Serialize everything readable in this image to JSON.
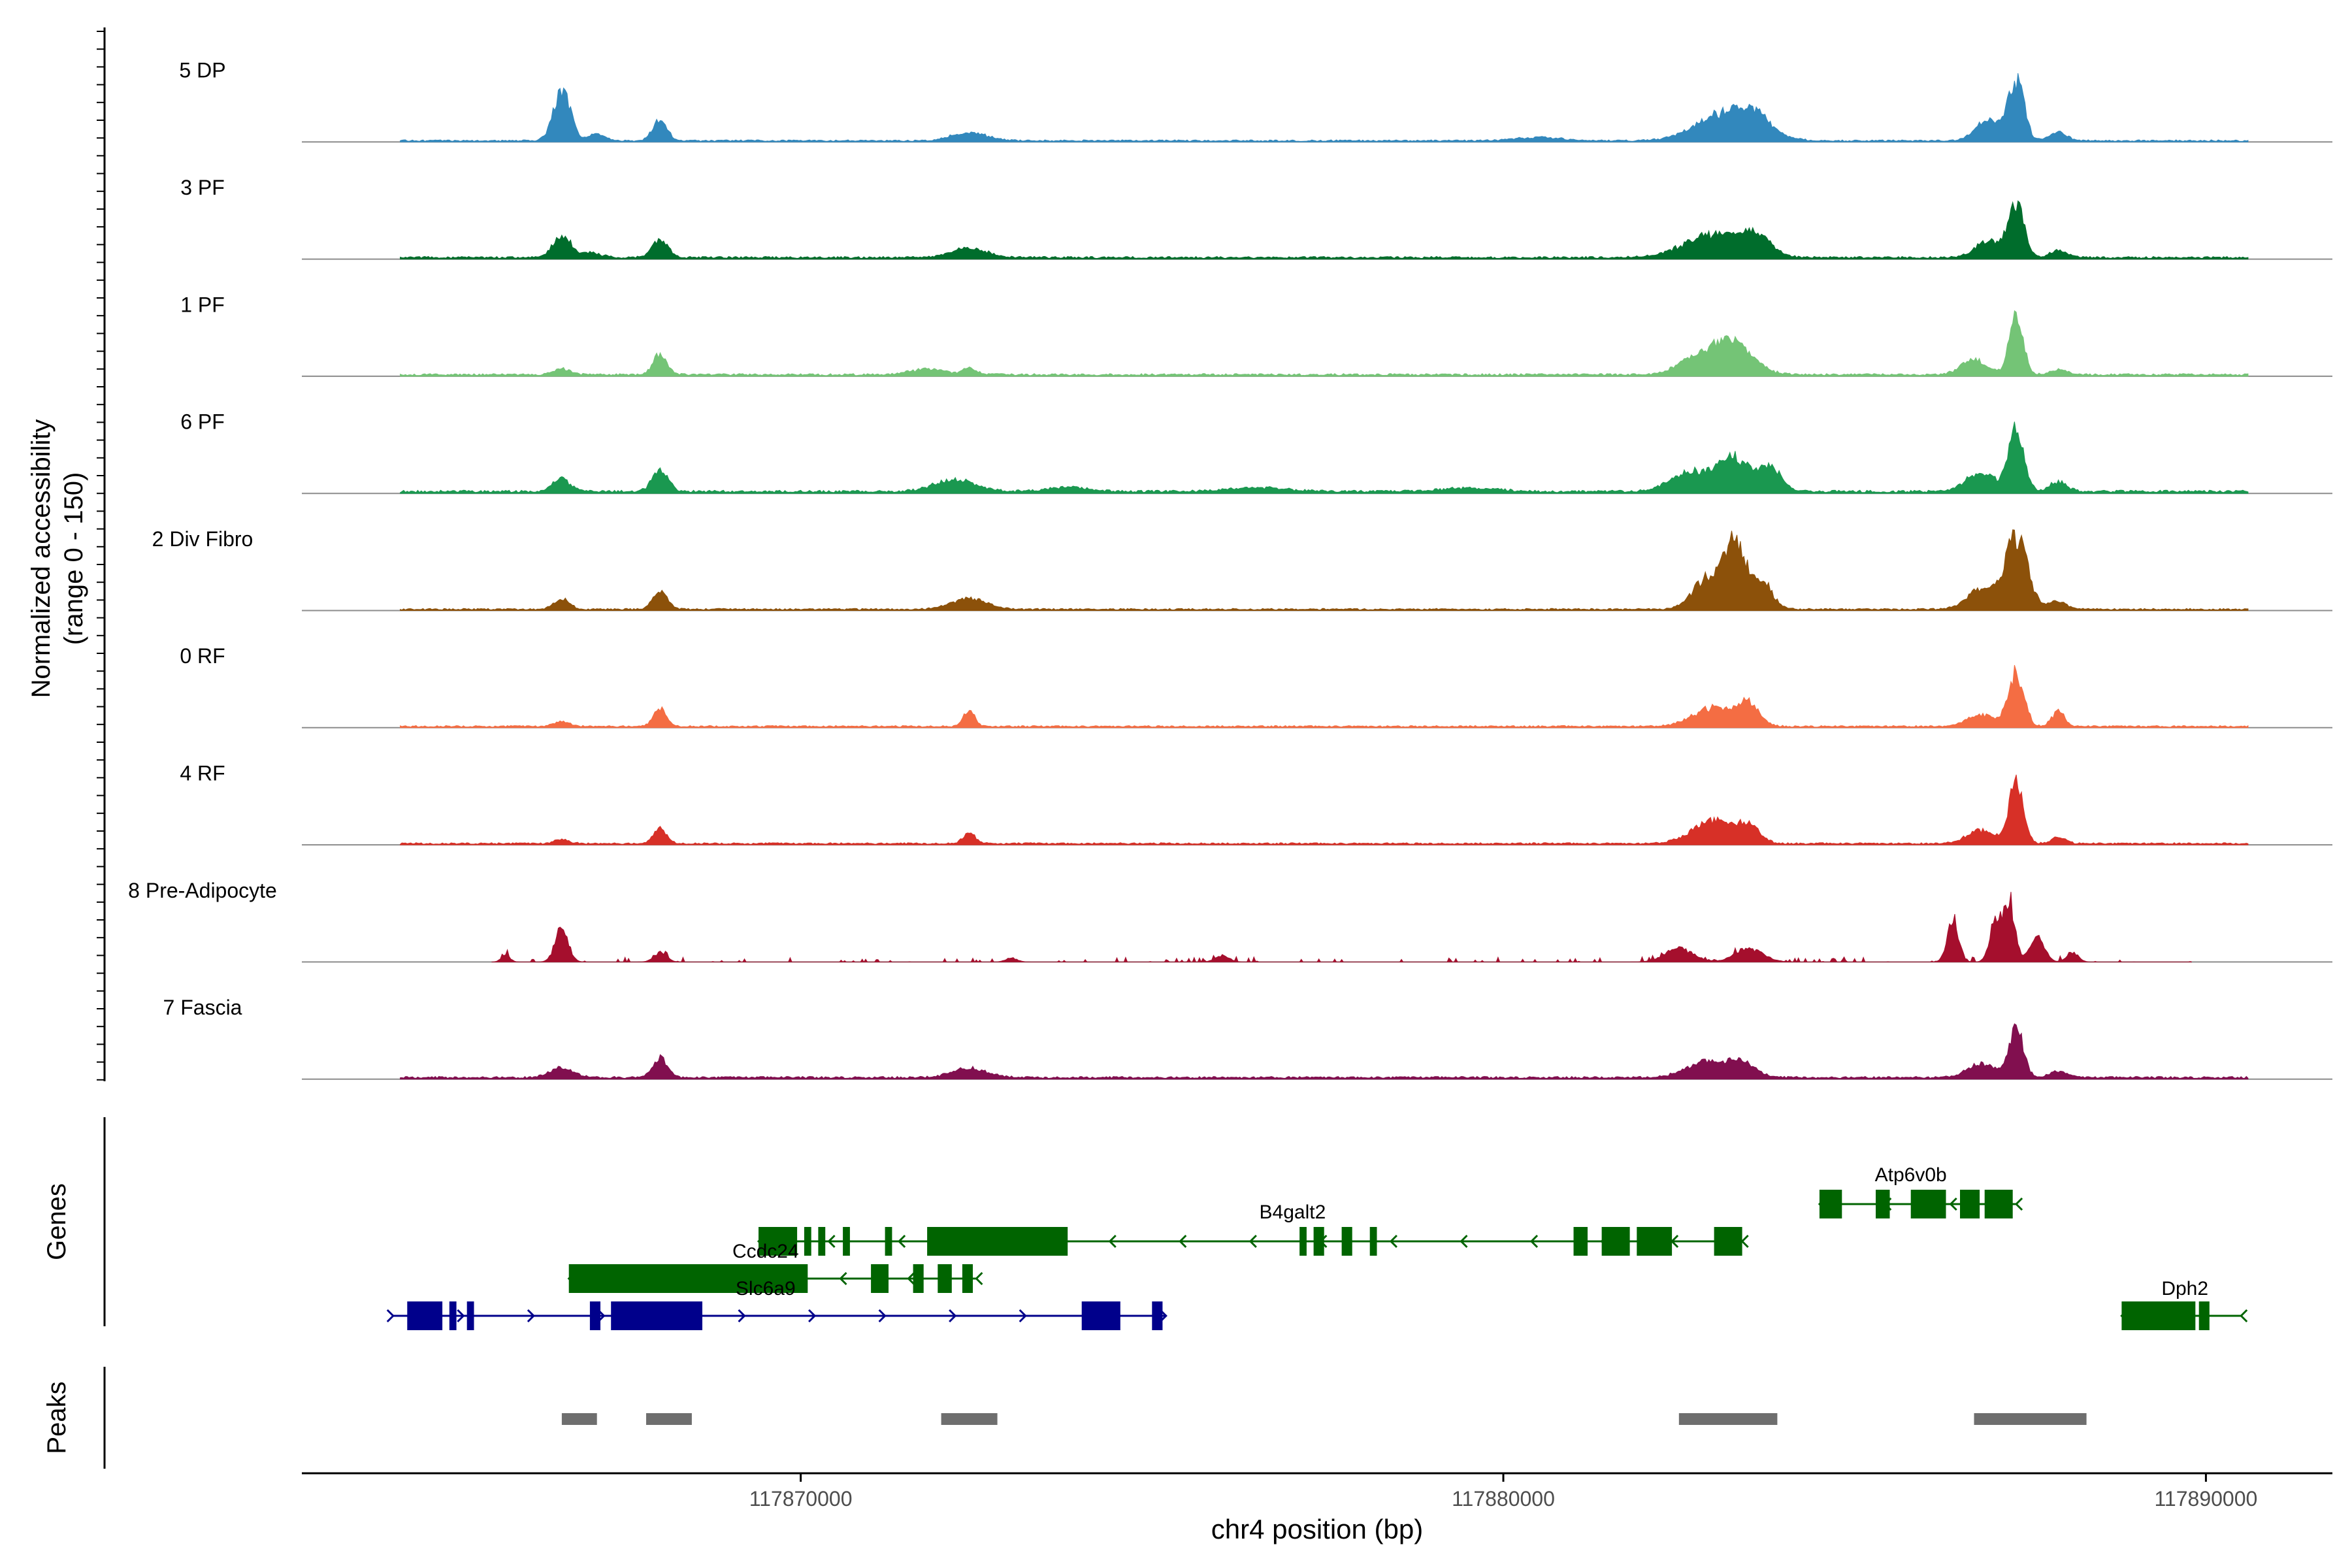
{
  "chart_data": {
    "type": "area",
    "subtype": "genome-coverage-track",
    "xlabel": "chr4 position (bp)",
    "ylabel": "Normalized accessibility",
    "ylabel_range": "(range 0 - 150)",
    "x_domain": [
      117862900,
      117891800
    ],
    "y_range": [
      0,
      150
    ],
    "x_ticks": [
      117870000,
      117880000,
      117890000
    ],
    "x_tick_labels": [
      "117870000",
      "117880000",
      "117890000"
    ],
    "genes_track_label": "Genes",
    "peaks_track_label": "Peaks",
    "tracks": [
      {
        "name": "5 DP",
        "color": "#3288bd",
        "peaks": [
          [
            117866600,
            150,
            120
          ],
          [
            117867100,
            20,
            120
          ],
          [
            117868000,
            65,
            100
          ],
          [
            117872400,
            24,
            250
          ],
          [
            117880500,
            10,
            300
          ],
          [
            117883200,
            85,
            420
          ],
          [
            117883600,
            40,
            200
          ],
          [
            117887300,
            180,
            110
          ],
          [
            117886900,
            60,
            180
          ],
          [
            117887900,
            25,
            120
          ]
        ],
        "baseline": 4,
        "noise_start": 117864300,
        "noise_end": 117890600
      },
      {
        "name": "3 PF",
        "color": "#006d2c",
        "peaks": [
          [
            117866600,
            70,
            120
          ],
          [
            117867000,
            15,
            150
          ],
          [
            117868000,
            50,
            110
          ],
          [
            117872400,
            28,
            250
          ],
          [
            117883000,
            70,
            420
          ],
          [
            117883600,
            55,
            200
          ],
          [
            117887300,
            160,
            110
          ],
          [
            117886900,
            50,
            180
          ],
          [
            117887900,
            20,
            120
          ]
        ],
        "baseline": 5,
        "noise_start": 117864300,
        "noise_end": 117890600
      },
      {
        "name": "1 PF",
        "color": "#74c476",
        "peaks": [
          [
            117866600,
            18,
            120
          ],
          [
            117868000,
            60,
            100
          ],
          [
            117871800,
            16,
            250
          ],
          [
            117872400,
            22,
            90
          ],
          [
            117883200,
            110,
            300
          ],
          [
            117882600,
            30,
            200
          ],
          [
            117887300,
            170,
            100
          ],
          [
            117886700,
            45,
            180
          ],
          [
            117887900,
            15,
            120
          ]
        ],
        "baseline": 5,
        "noise_start": 117864300,
        "noise_end": 117890600
      },
      {
        "name": "6 PF",
        "color": "#1a9850",
        "peaks": [
          [
            117866600,
            40,
            120
          ],
          [
            117868000,
            65,
            110
          ],
          [
            117872200,
            35,
            300
          ],
          [
            117882700,
            60,
            300
          ],
          [
            117883300,
            95,
            220
          ],
          [
            117883800,
            70,
            150
          ],
          [
            117887300,
            180,
            110
          ],
          [
            117886800,
            60,
            200
          ],
          [
            117887900,
            30,
            120
          ],
          [
            117873800,
            12,
            300
          ],
          [
            117876500,
            12,
            400
          ],
          [
            117879500,
            10,
            400
          ]
        ],
        "baseline": 6,
        "noise_start": 117864300,
        "noise_end": 117890600
      },
      {
        "name": "2 Div Fibro",
        "color": "#8c510a",
        "peaks": [
          [
            117866600,
            30,
            110
          ],
          [
            117868000,
            55,
            100
          ],
          [
            117872400,
            32,
            250
          ],
          [
            117882900,
            90,
            200
          ],
          [
            117883300,
            200,
            160
          ],
          [
            117883700,
            75,
            140
          ],
          [
            117887300,
            215,
            160
          ],
          [
            117886800,
            60,
            200
          ],
          [
            117887900,
            25,
            120
          ]
        ],
        "baseline": 4,
        "noise_start": 117864300,
        "noise_end": 117890600
      },
      {
        "name": "0 RF",
        "color": "#f46d43",
        "peaks": [
          [
            117866600,
            15,
            110
          ],
          [
            117868000,
            55,
            90
          ],
          [
            117872400,
            50,
            80
          ],
          [
            117883000,
            55,
            300
          ],
          [
            117883500,
            60,
            150
          ],
          [
            117887300,
            160,
            110
          ],
          [
            117886800,
            35,
            200
          ],
          [
            117887900,
            45,
            90
          ]
        ],
        "baseline": 4,
        "noise_start": 117864300,
        "noise_end": 117890600
      },
      {
        "name": "4 RF",
        "color": "#d73027",
        "peaks": [
          [
            117866600,
            12,
            110
          ],
          [
            117868000,
            45,
            90
          ],
          [
            117872400,
            30,
            90
          ],
          [
            117883000,
            70,
            300
          ],
          [
            117883500,
            45,
            150
          ],
          [
            117887300,
            180,
            100
          ],
          [
            117886800,
            40,
            200
          ],
          [
            117887900,
            20,
            100
          ]
        ],
        "baseline": 4,
        "noise_start": 117864300,
        "noise_end": 117890600
      },
      {
        "name": "8 Pre-Adipocyte",
        "color": "#a50f2d",
        "peaks": [
          [
            117866600,
            110,
            90
          ],
          [
            117865800,
            22,
            60
          ],
          [
            117868000,
            28,
            90
          ],
          [
            117873000,
            12,
            80
          ],
          [
            117876000,
            18,
            100
          ],
          [
            117882500,
            40,
            200
          ],
          [
            117883500,
            40,
            200
          ],
          [
            117886400,
            120,
            80
          ],
          [
            117887200,
            185,
            80
          ],
          [
            117887600,
            80,
            100
          ],
          [
            117887000,
            120,
            80
          ],
          [
            117888100,
            30,
            80
          ]
        ],
        "baseline": 0,
        "noise_start": 117865600,
        "noise_end": 117889800,
        "sparse": true
      },
      {
        "name": "7 Fascia",
        "color": "#810f4f",
        "peaks": [
          [
            117866600,
            30,
            160
          ],
          [
            117868000,
            60,
            100
          ],
          [
            117872400,
            28,
            250
          ],
          [
            117882900,
            45,
            300
          ],
          [
            117883400,
            40,
            200
          ],
          [
            117887300,
            155,
            100
          ],
          [
            117886800,
            40,
            200
          ],
          [
            117887900,
            20,
            120
          ]
        ],
        "baseline": 5,
        "noise_start": 117864300,
        "noise_end": 117890600
      }
    ],
    "genes": [
      {
        "name": "Atp6v0b",
        "strand": "-",
        "color": "#006400",
        "start": 117884500,
        "end": 117887300,
        "exons": [
          [
            117884500,
            117884820
          ],
          [
            117885300,
            117885500
          ],
          [
            117885800,
            117886300
          ],
          [
            117886500,
            117886780
          ],
          [
            117886850,
            117887250
          ]
        ]
      },
      {
        "name": "B4galt2",
        "strand": "-",
        "color": "#006400",
        "start": 117869400,
        "end": 117883400,
        "exons": [
          [
            117869400,
            117869950
          ],
          [
            117870050,
            117870150
          ],
          [
            117870250,
            117870350
          ],
          [
            117870600,
            117870700
          ],
          [
            117871200,
            117871300
          ],
          [
            117871800,
            117873800
          ],
          [
            117877100,
            117877200
          ],
          [
            117877300,
            117877450
          ],
          [
            117877700,
            117877850
          ],
          [
            117878100,
            117878200
          ],
          [
            117881000,
            117881200
          ],
          [
            117881400,
            117881800
          ],
          [
            117881900,
            117882400
          ],
          [
            117883000,
            117883400
          ]
        ]
      },
      {
        "name": "Ccdc24",
        "strand": "-",
        "color": "#006400",
        "start": 117866700,
        "end": 117872500,
        "exons": [
          [
            117866700,
            117870100
          ],
          [
            117871000,
            117871250
          ],
          [
            117871600,
            117871750
          ],
          [
            117871950,
            117872150
          ],
          [
            117872300,
            117872450
          ]
        ]
      },
      {
        "name": "Slc6a9",
        "strand": "+",
        "color": "#00008b",
        "start": 117864200,
        "end": 117875200,
        "exons": [
          [
            117864400,
            117864900
          ],
          [
            117865000,
            117865100
          ],
          [
            117865250,
            117865350
          ],
          [
            117867000,
            117867150
          ],
          [
            117867300,
            117868600
          ],
          [
            117874000,
            117874550
          ],
          [
            117875000,
            117875150
          ]
        ]
      },
      {
        "name": "Dph2",
        "strand": "-",
        "color": "#006400",
        "start": 117888800,
        "end": 117890500,
        "exons": [
          [
            117888800,
            117889850
          ],
          [
            117889900,
            117890050
          ]
        ]
      }
    ],
    "peaks_regions": [
      [
        117866600,
        117867100
      ],
      [
        117867800,
        117868450
      ],
      [
        117872000,
        117872800
      ],
      [
        117882500,
        117883900
      ],
      [
        117886700,
        117888300
      ]
    ]
  }
}
